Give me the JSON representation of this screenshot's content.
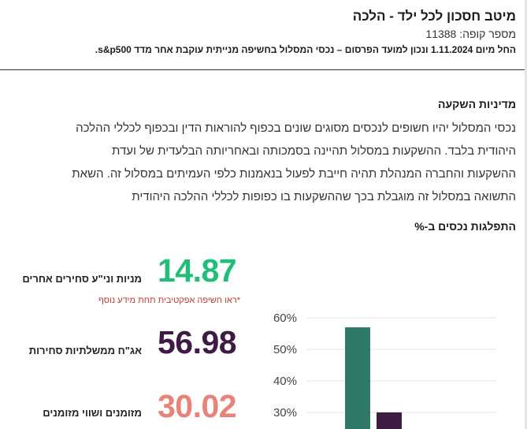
{
  "header": {
    "title": "מיטב חסכון לכל ילד - הלכה",
    "fund_number": "מספר קופה: 11388",
    "date_line": "החל מיום 1.11.2024 ונכון למועד הפרסום – נכסי המסלול בחשיפה מנייתית עוקבת אחר מדד s&p500."
  },
  "policy": {
    "heading": "מדיניות השקעה",
    "lines": [
      "נכסי המסלול יהיו חשופים לנכסים מסוגים שונים בכפוף להוראות הדין ובכפוף לכללי ההלכה",
      "היהודית בלבד. ההשקעות במסלול תהיינה בסמכותה ובאחריותה הבלעדית של ועדת",
      "ההשקעות והחברה המנהלת תהיה חייבת לפעול בנאמנות כלפי העמיתים במסלול זה. השאת",
      "התשואה במסלול זה מוגבלת בכך שההשקעות בו כפופות לכללי ההלכה היהודית"
    ]
  },
  "allocation": {
    "heading": "התפלגות נכסים ב-%",
    "note": "*ראו חשיפה אפקטיבית תחת מידע נוסף",
    "stats": [
      {
        "value": "14.87",
        "label": "מניות וני\"ע סחירים אחרים",
        "color": "#1fbf77"
      },
      {
        "value": "56.98",
        "label": "אג\"ח ממשלתיות סחירות",
        "color": "#3d1b42"
      },
      {
        "value": "30.02",
        "label": "מזומנים ושווי מזומנים",
        "color": "#e8837a"
      }
    ]
  },
  "chart_data": {
    "type": "bar",
    "ylim": [
      25,
      60
    ],
    "yticks": [
      "60%",
      "50%",
      "40%",
      "30%"
    ],
    "bars": [
      {
        "value": 56.98,
        "color": "#2f7a66"
      },
      {
        "value": 30.02,
        "color": "#3d1b42"
      }
    ]
  }
}
